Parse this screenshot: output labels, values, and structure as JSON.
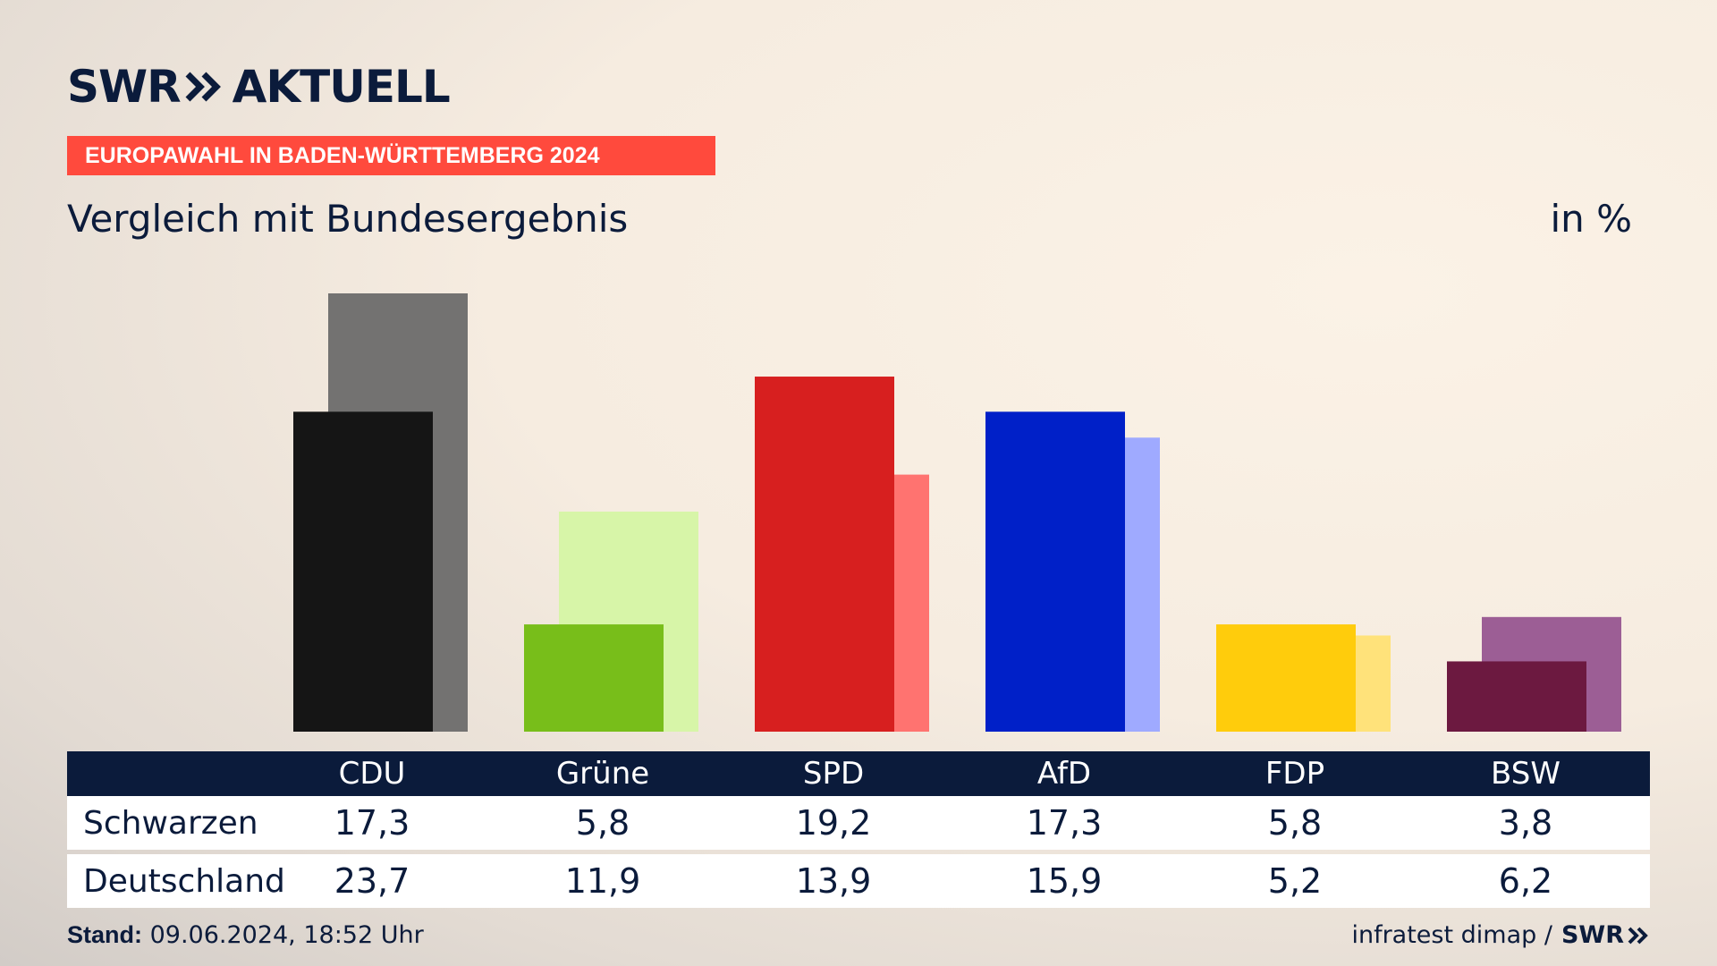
{
  "brand": {
    "swr": "SWR",
    "aktuell": "AKTUELL"
  },
  "tag": "EUROPAWAHL IN BADEN-WÜRTTEMBERG 2024",
  "subtitle": "Vergleich mit Bundesergebnis",
  "unit": "in %",
  "chart_data": {
    "type": "bar",
    "categories": [
      "CDU",
      "Grüne",
      "SPD",
      "AfD",
      "FDP",
      "BSW"
    ],
    "series": [
      {
        "name": "Schwarzen",
        "values": [
          17.3,
          5.8,
          19.2,
          17.3,
          5.8,
          3.8
        ]
      },
      {
        "name": "Deutschland",
        "values": [
          23.7,
          11.9,
          13.9,
          15.9,
          5.2,
          6.2
        ]
      }
    ],
    "colors_primary": [
      "#151515",
      "#78be1a",
      "#d71f1f",
      "#0020c8",
      "#ffcc0c",
      "#6c1940"
    ],
    "colors_secondary": [
      "#737271",
      "#d7f5a8",
      "#ff7370",
      "#9faaff",
      "#ffe27a",
      "#9c5e95"
    ],
    "ylim": [
      0,
      25
    ]
  },
  "footer": {
    "stand_label": "Stand:",
    "stand_value": "09.06.2024, 18:52 Uhr",
    "source": "infratest dimap /",
    "logo": "SWR"
  }
}
